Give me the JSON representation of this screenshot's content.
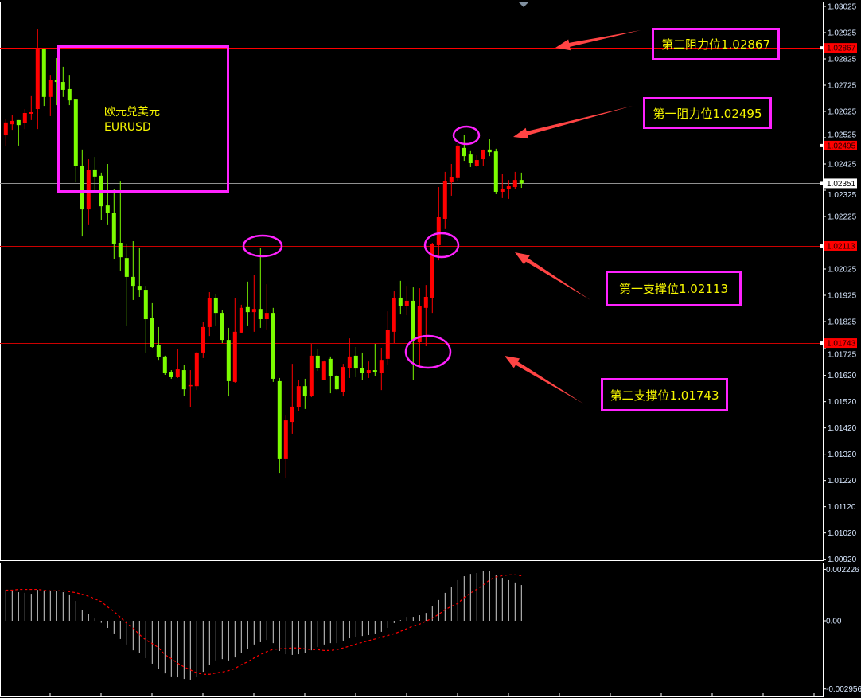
{
  "symbol": {
    "name_cn": "欧元兑美元",
    "name": "EURUSD"
  },
  "annotations": [
    {
      "text": "第二阻力位1.02867",
      "level": 1.02867
    },
    {
      "text": "第一阻力位1.02495",
      "level": 1.02495
    },
    {
      "text": "第一支撑位1.02113",
      "level": 1.02113
    },
    {
      "text": "第二支撑位1.01743",
      "level": 1.01743
    }
  ],
  "colors": {
    "up": "#ff0000",
    "down": "#7cfc00",
    "background": "#000000",
    "annotation_border": "#ff22ff",
    "annotation_text": "#f5f500",
    "arrow": "#ff4444",
    "level_line": "#cc0000",
    "price_line": "#909090",
    "macd_hist": "#d0d0d0",
    "macd_signal": "#ff0000"
  },
  "chart_data": [
    {
      "type": "candlestick",
      "up_color": "red",
      "down_color": "green",
      "ylim": [
        1.00905,
        1.03085
      ],
      "y_ticks": [
        1.03025,
        1.02925,
        1.02825,
        1.02725,
        1.02625,
        1.02525,
        1.02425,
        1.02325,
        1.02225,
        1.02025,
        1.01925,
        1.01825,
        1.01725,
        1.0162,
        1.0152,
        1.0142,
        1.0132,
        1.0122,
        1.0112,
        1.0102,
        1.0092
      ],
      "y_tick_labels": [
        "1.03025",
        "1.02925",
        "1.02825",
        "1.02725",
        "1.02625",
        "1.02525",
        "1.02425",
        "1.02325",
        "1.02225",
        "1.02025",
        "1.01925",
        "1.01825",
        "1.01725",
        "1.01620",
        "1.01520",
        "1.01420",
        "1.01320",
        "1.01220",
        "1.01120",
        "1.01020",
        "1.00920"
      ],
      "horizontal_levels": [
        {
          "value": 1.02867,
          "label": "1.02867",
          "kind": "resistance"
        },
        {
          "value": 1.02495,
          "label": "1.02495",
          "kind": "resistance"
        },
        {
          "value": 1.02113,
          "label": "1.02113",
          "kind": "support"
        },
        {
          "value": 1.01743,
          "label": "1.01743",
          "kind": "support"
        }
      ],
      "current_price": {
        "value": 1.02351,
        "label": "1.02351"
      },
      "ohlc_columns": [
        "open",
        "high",
        "low",
        "close"
      ],
      "candles": [
        [
          1.02534,
          1.02595,
          1.02495,
          1.02583
        ],
        [
          1.02576,
          1.0261,
          1.02555,
          1.02589
        ],
        [
          1.02592,
          1.02592,
          1.02495,
          1.02573
        ],
        [
          1.0258,
          1.02634,
          1.02558,
          1.02619
        ],
        [
          1.02616,
          1.02686,
          1.02592,
          1.02622
        ],
        [
          1.02634,
          1.02937,
          1.02558,
          1.02864
        ],
        [
          1.02864,
          1.02864,
          1.02646,
          1.0268
        ],
        [
          1.0268,
          1.02764,
          1.02607,
          1.02746
        ],
        [
          1.02746,
          1.02828,
          1.02649,
          1.02737
        ],
        [
          1.02737,
          1.02795,
          1.0268,
          1.02707
        ],
        [
          1.0271,
          1.02764,
          1.02649,
          1.02667
        ],
        [
          1.0267,
          1.02673,
          1.02355,
          1.02416
        ],
        [
          1.02419,
          1.0248,
          1.02149,
          1.02252
        ],
        [
          1.02252,
          1.02443,
          1.02192,
          1.02401
        ],
        [
          1.02404,
          1.02452,
          1.02313,
          1.02377
        ],
        [
          1.0238,
          1.02392,
          1.0221,
          1.02264
        ],
        [
          1.02267,
          1.02425,
          1.02192,
          1.0224
        ],
        [
          1.0224,
          1.02328,
          1.02064,
          1.02122
        ],
        [
          1.02125,
          1.02358,
          1.02019,
          1.0207
        ],
        [
          1.02067,
          1.02119,
          1.0181,
          1.01995
        ],
        [
          1.01995,
          1.02131,
          1.01907,
          1.01961
        ],
        [
          1.01961,
          1.02104,
          1.01919,
          1.01946
        ],
        [
          1.01946,
          1.01961,
          1.01707,
          1.01834
        ],
        [
          1.0184,
          1.01895,
          1.01725,
          1.01728
        ],
        [
          1.01737,
          1.01804,
          1.01679,
          1.01689
        ],
        [
          1.01692,
          1.01695,
          1.01622,
          1.01628
        ],
        [
          1.01634,
          1.0164,
          1.01607,
          1.01613
        ],
        [
          1.01613,
          1.01722,
          1.0161,
          1.01643
        ],
        [
          1.0164,
          1.01661,
          1.01543,
          1.01567
        ],
        [
          1.01579,
          1.0164,
          1.01498,
          1.01583
        ],
        [
          1.01579,
          1.0171,
          1.01564,
          1.01707
        ],
        [
          1.01707,
          1.01822,
          1.01686,
          1.01804
        ],
        [
          1.01804,
          1.01937,
          1.0177,
          1.01913
        ],
        [
          1.01916,
          1.01931,
          1.0181,
          1.01858
        ],
        [
          1.01858,
          1.0187,
          1.01743,
          1.01755
        ],
        [
          1.01755,
          1.01801,
          1.0154,
          1.01598
        ],
        [
          1.01595,
          1.01913,
          1.01592,
          1.01786
        ],
        [
          1.01783,
          1.01889,
          1.0178,
          1.01877
        ],
        [
          1.0188,
          1.01977,
          1.0181,
          1.01861
        ],
        [
          1.01861,
          1.02001,
          1.01786,
          1.01873
        ],
        [
          1.01873,
          1.02104,
          1.01801,
          1.01834
        ],
        [
          1.01834,
          1.01967,
          1.01795,
          1.01858
        ],
        [
          1.01858,
          1.01877,
          1.01595,
          1.01607
        ],
        [
          1.01598,
          1.0161,
          1.01249,
          1.01301
        ],
        [
          1.01301,
          1.01467,
          1.01228,
          1.01449
        ],
        [
          1.01443,
          1.01664,
          1.01398,
          1.01501
        ],
        [
          1.01498,
          1.01601,
          1.01483,
          1.01579
        ],
        [
          1.01579,
          1.01607,
          1.01492,
          1.0154
        ],
        [
          1.01543,
          1.0174,
          1.01537,
          1.01695
        ],
        [
          1.01695,
          1.01722,
          1.01637,
          1.01649
        ],
        [
          1.01601,
          1.01677,
          1.01601,
          1.01673
        ],
        [
          1.01683,
          1.01692,
          1.01552,
          1.01616
        ],
        [
          1.01619,
          1.01622,
          1.01564,
          1.01567
        ],
        [
          1.01558,
          1.01664,
          1.0154,
          1.01652
        ],
        [
          1.01649,
          1.01761,
          1.0161,
          1.01692
        ],
        [
          1.01695,
          1.01728,
          1.01613,
          1.01646
        ],
        [
          1.01649,
          1.01707,
          1.01601,
          1.01628
        ],
        [
          1.01628,
          1.01673,
          1.0161,
          1.0164
        ],
        [
          1.0164,
          1.0174,
          1.01616,
          1.01631
        ],
        [
          1.01628,
          1.01725,
          1.01564,
          1.01679
        ],
        [
          1.01683,
          1.01864,
          1.01661,
          1.01792
        ],
        [
          1.01786,
          1.0194,
          1.01743,
          1.01916
        ],
        [
          1.01916,
          1.0198,
          1.01852,
          1.01883
        ],
        [
          1.01883,
          1.01961,
          1.01849,
          1.01904
        ],
        [
          1.01904,
          1.01955,
          1.01601,
          1.01755
        ],
        [
          1.01746,
          1.01952,
          1.01655,
          1.01883
        ],
        [
          1.01877,
          1.01964,
          1.01731,
          1.01919
        ],
        [
          1.01916,
          1.02125,
          1.01858,
          1.02119
        ],
        [
          1.02116,
          1.02337,
          1.02058,
          1.02222
        ],
        [
          1.02216,
          1.02395,
          1.02177,
          1.02361
        ],
        [
          1.02355,
          1.02425,
          1.02304,
          1.02374
        ],
        [
          1.02371,
          1.02504,
          1.02361,
          1.02495
        ],
        [
          1.02486,
          1.02537,
          1.02437,
          1.02455
        ],
        [
          1.02461,
          1.02474,
          1.02413,
          1.02428
        ],
        [
          1.02416,
          1.02458,
          1.02413,
          1.0244
        ],
        [
          1.02443,
          1.0248,
          1.02416,
          1.02477
        ],
        [
          1.0248,
          1.02519,
          1.02455,
          1.0247
        ],
        [
          1.02473,
          1.02483,
          1.0231,
          1.02319
        ],
        [
          1.02319,
          1.02386,
          1.02295,
          1.02331
        ],
        [
          1.02328,
          1.02364,
          1.02292,
          1.0234
        ],
        [
          1.02337,
          1.02395,
          1.02331,
          1.02364
        ],
        [
          1.02364,
          1.02392,
          1.02334,
          1.02351
        ]
      ]
    },
    {
      "type": "bar+line",
      "indicator": "MACD",
      "ylim": [
        -0.002956,
        0.002226
      ],
      "y_ticks": [
        0.002226,
        0.0,
        -0.002956
      ],
      "y_tick_labels": [
        "0.002226",
        "0.00",
        "-0.002956"
      ],
      "histogram": [
        0.00134,
        0.00132,
        0.00124,
        0.00121,
        0.00117,
        0.00134,
        0.00132,
        0.0013,
        0.00129,
        0.00124,
        0.00114,
        0.00086,
        0.00045,
        0.00028,
        0.0001,
        -9e-05,
        -0.00031,
        -0.00055,
        -0.00079,
        -0.00103,
        -0.00128,
        -0.0014,
        -0.00162,
        -0.00186,
        -0.00207,
        -0.00228,
        -0.00241,
        -0.00245,
        -0.00252,
        -0.00255,
        -0.00245,
        -0.00221,
        -0.00193,
        -0.00172,
        -0.00166,
        -0.00172,
        -0.00159,
        -0.00138,
        -0.00121,
        -0.00103,
        -0.00093,
        -0.00083,
        -0.00097,
        -0.00131,
        -0.00145,
        -0.00148,
        -0.00145,
        -0.00141,
        -0.00128,
        -0.00114,
        -0.00103,
        -0.00097,
        -0.00097,
        -0.00086,
        -0.00076,
        -0.00069,
        -0.00066,
        -0.00062,
        -0.00055,
        -0.00048,
        -0.00031,
        -0.0001,
        3e-05,
        0.00017,
        0.00017,
        0.00024,
        0.00034,
        0.00062,
        0.0009,
        0.00121,
        0.00148,
        0.00176,
        0.00193,
        0.00203,
        0.00207,
        0.00214,
        0.00214,
        0.002,
        0.00186,
        0.00176,
        0.00166,
        0.00155
      ],
      "signal": [
        0.00133,
        0.00133,
        0.00136,
        0.00136,
        0.00136,
        0.00136,
        0.00132,
        0.0013,
        0.0013,
        0.0013,
        0.00126,
        0.00122,
        0.00115,
        0.00106,
        0.00095,
        0.00083,
        0.0006,
        0.0004,
        0.00015,
        -0.00011,
        -0.00032,
        -0.0006,
        -0.00083,
        -0.00099,
        -0.00117,
        -0.00147,
        -0.00164,
        -0.00184,
        -0.002,
        -0.00213,
        -0.00226,
        -0.00232,
        -0.00232,
        -0.00226,
        -0.00222,
        -0.00216,
        -0.00207,
        -0.0019,
        -0.00178,
        -0.00161,
        -0.00146,
        -0.00134,
        -0.00124,
        -0.00122,
        -0.0012,
        -0.00118,
        -0.00118,
        -0.00122,
        -0.00125,
        -0.00125,
        -0.00129,
        -0.00129,
        -0.00125,
        -0.00118,
        -0.0011,
        -0.00101,
        -0.00094,
        -0.00086,
        -0.00079,
        -0.0007,
        -0.00064,
        -0.00056,
        -0.00046,
        -0.00034,
        -0.00023,
        -0.00015,
        -2e-05,
        0.00011,
        0.00028,
        0.00048,
        0.00063,
        0.00075,
        0.00101,
        0.0012,
        0.00137,
        0.00155,
        0.00177,
        0.0019,
        0.00195,
        0.00199,
        0.00199,
        0.00195
      ]
    }
  ]
}
